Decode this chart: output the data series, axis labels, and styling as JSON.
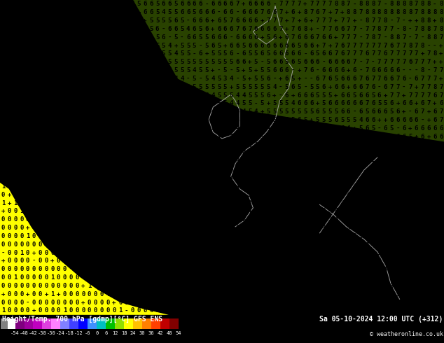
{
  "title_left": "Height/Temp. 700 hPa [gdmp][°C] GFS ENS",
  "title_right": "Sa 05-10-2024 12:00 UTC (+312)",
  "copyright": "© weatheronline.co.uk",
  "colorbar_levels": [
    -54,
    -48,
    -42,
    -38,
    -30,
    -24,
    -18,
    -12,
    -6,
    0,
    6,
    12,
    18,
    24,
    30,
    36,
    42,
    48,
    54
  ],
  "colorbar_colors": [
    "#808080",
    "#ffffff",
    "#7f007f",
    "#9f009f",
    "#bf00bf",
    "#df40df",
    "#ff80ff",
    "#8080ff",
    "#4040ff",
    "#0000ff",
    "#4090ff",
    "#00c0c0",
    "#00c000",
    "#90dd00",
    "#ffff00",
    "#ffc000",
    "#ff8000",
    "#ff4000",
    "#c00000",
    "#800000"
  ],
  "bg_color_green": "#00cc00",
  "bg_color_yellow": "#ffff00",
  "bg_color_lime": "#88dd00",
  "text_color": "#000000",
  "figsize": [
    6.34,
    4.9
  ],
  "dpi": 100,
  "rows": 38,
  "cols": 72,
  "font_size": 6.5,
  "bottom_bar_height": 0.082
}
